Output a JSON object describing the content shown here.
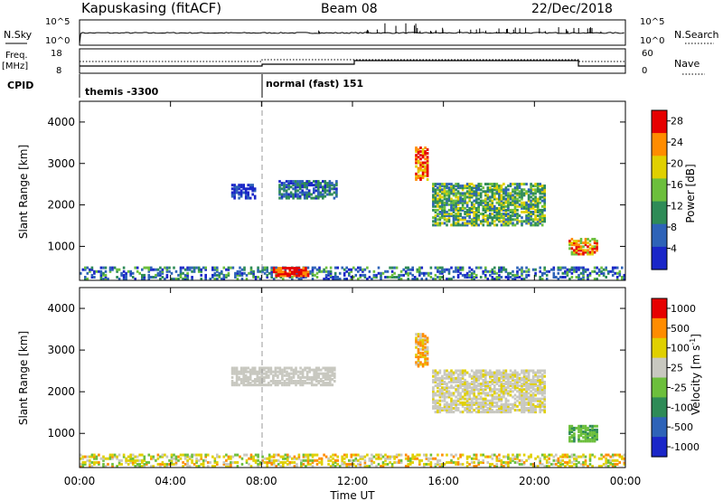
{
  "header": {
    "station": "Kapuskasing (fitACF)",
    "beam": "Beam 08",
    "date": "22/Dec/2018"
  },
  "noise_panel": {
    "left_label": "N.Sky",
    "left_ticks": [
      "10^5",
      "10^0"
    ],
    "right_label": "N.Search",
    "right_ticks": [
      "10^5",
      "10^0"
    ]
  },
  "freq_panel": {
    "left_label_1": "Freq.",
    "left_label_2": "[MHz]",
    "left_ticks": [
      "18",
      "8"
    ],
    "right_label": "Nave",
    "right_ticks": [
      "60",
      "0"
    ]
  },
  "cpid_panel": {
    "label": "CPID",
    "modes": [
      "themis -3300",
      "normal (fast) 151"
    ]
  },
  "colors": {
    "scale_blue": "#1a26c8",
    "scale_green": "#2e8b57",
    "scale_yellow": "#e0d000",
    "scale_orange": "#ff8c00",
    "scale_red": "#e60000",
    "vel_gray": "#c8c8c0"
  },
  "chart_data": [
    {
      "type": "heatmap",
      "title": "Power",
      "ylabel": "Slant Range [km]",
      "xlabel": "",
      "y_ticks": [
        "1000",
        "2000",
        "3000",
        "4000"
      ],
      "ylim": [
        180,
        4500
      ],
      "xlim": [
        "00:00",
        "24:00"
      ],
      "colorbar": {
        "label": "Power [dB]",
        "ticks": [
          "4",
          "8",
          "12",
          "16",
          "20",
          "24",
          "28"
        ],
        "range": [
          0,
          30
        ],
        "colors": [
          "#1a26c8",
          "#2e63b8",
          "#2e8b57",
          "#6cbf3c",
          "#e0d000",
          "#ff8c00",
          "#e60000"
        ]
      },
      "regions": [
        {
          "time": [
            "00:00",
            "24:00"
          ],
          "range_km": [
            200,
            500
          ],
          "level": "blue/green, scattered"
        },
        {
          "time": [
            "08:30",
            "10:00"
          ],
          "range_km": [
            280,
            480
          ],
          "level": "red ~28"
        },
        {
          "time": [
            "06:40",
            "07:45"
          ],
          "range_km": [
            2150,
            2500
          ],
          "level": "blue ~6"
        },
        {
          "time": [
            "08:45",
            "11:15"
          ],
          "range_km": [
            2150,
            2600
          ],
          "level": "green/blue ~10"
        },
        {
          "time": [
            "14:45",
            "15:20"
          ],
          "range_km": [
            2600,
            3400
          ],
          "level": "red/orange ~24"
        },
        {
          "time": [
            "15:30",
            "20:30"
          ],
          "range_km": [
            1500,
            2500
          ],
          "level": "green/yellow ~14"
        },
        {
          "time": [
            "21:30",
            "22:45"
          ],
          "range_km": [
            800,
            1200
          ],
          "level": "red/yellow ~24"
        }
      ]
    },
    {
      "type": "heatmap",
      "title": "Velocity",
      "ylabel": "Slant Range [km]",
      "xlabel": "Time UT",
      "x_ticks": [
        "00:00",
        "04:00",
        "08:00",
        "12:00",
        "16:00",
        "20:00",
        "00:00"
      ],
      "y_ticks": [
        "1000",
        "2000",
        "3000",
        "4000"
      ],
      "ylim": [
        180,
        4500
      ],
      "xlim": [
        "00:00",
        "24:00"
      ],
      "colorbar": {
        "label": "Velocity [m s^-1]",
        "ticks": [
          "1000",
          "500",
          "100",
          "25",
          "-25",
          "-100",
          "-500",
          "-1000"
        ],
        "colors": [
          "#1a26c8",
          "#2e63b8",
          "#2e8b57",
          "#6cbf3c",
          "#c8c8c0",
          "#e0d000",
          "#ff8c00",
          "#e60000"
        ]
      },
      "regions": [
        {
          "time": [
            "00:00",
            "24:00"
          ],
          "range_km": [
            200,
            500
          ],
          "level": "yellow/green, scattered"
        },
        {
          "time": [
            "06:40",
            "11:15"
          ],
          "range_km": [
            2150,
            2600
          ],
          "level": "gray ~0"
        },
        {
          "time": [
            "14:45",
            "15:20"
          ],
          "range_km": [
            2600,
            3400
          ],
          "level": "orange ~-100"
        },
        {
          "time": [
            "15:30",
            "20:30"
          ],
          "range_km": [
            1500,
            2500
          ],
          "level": "gray ~0"
        },
        {
          "time": [
            "21:30",
            "22:45"
          ],
          "range_km": [
            800,
            1200
          ],
          "level": "green ~100"
        }
      ]
    }
  ]
}
